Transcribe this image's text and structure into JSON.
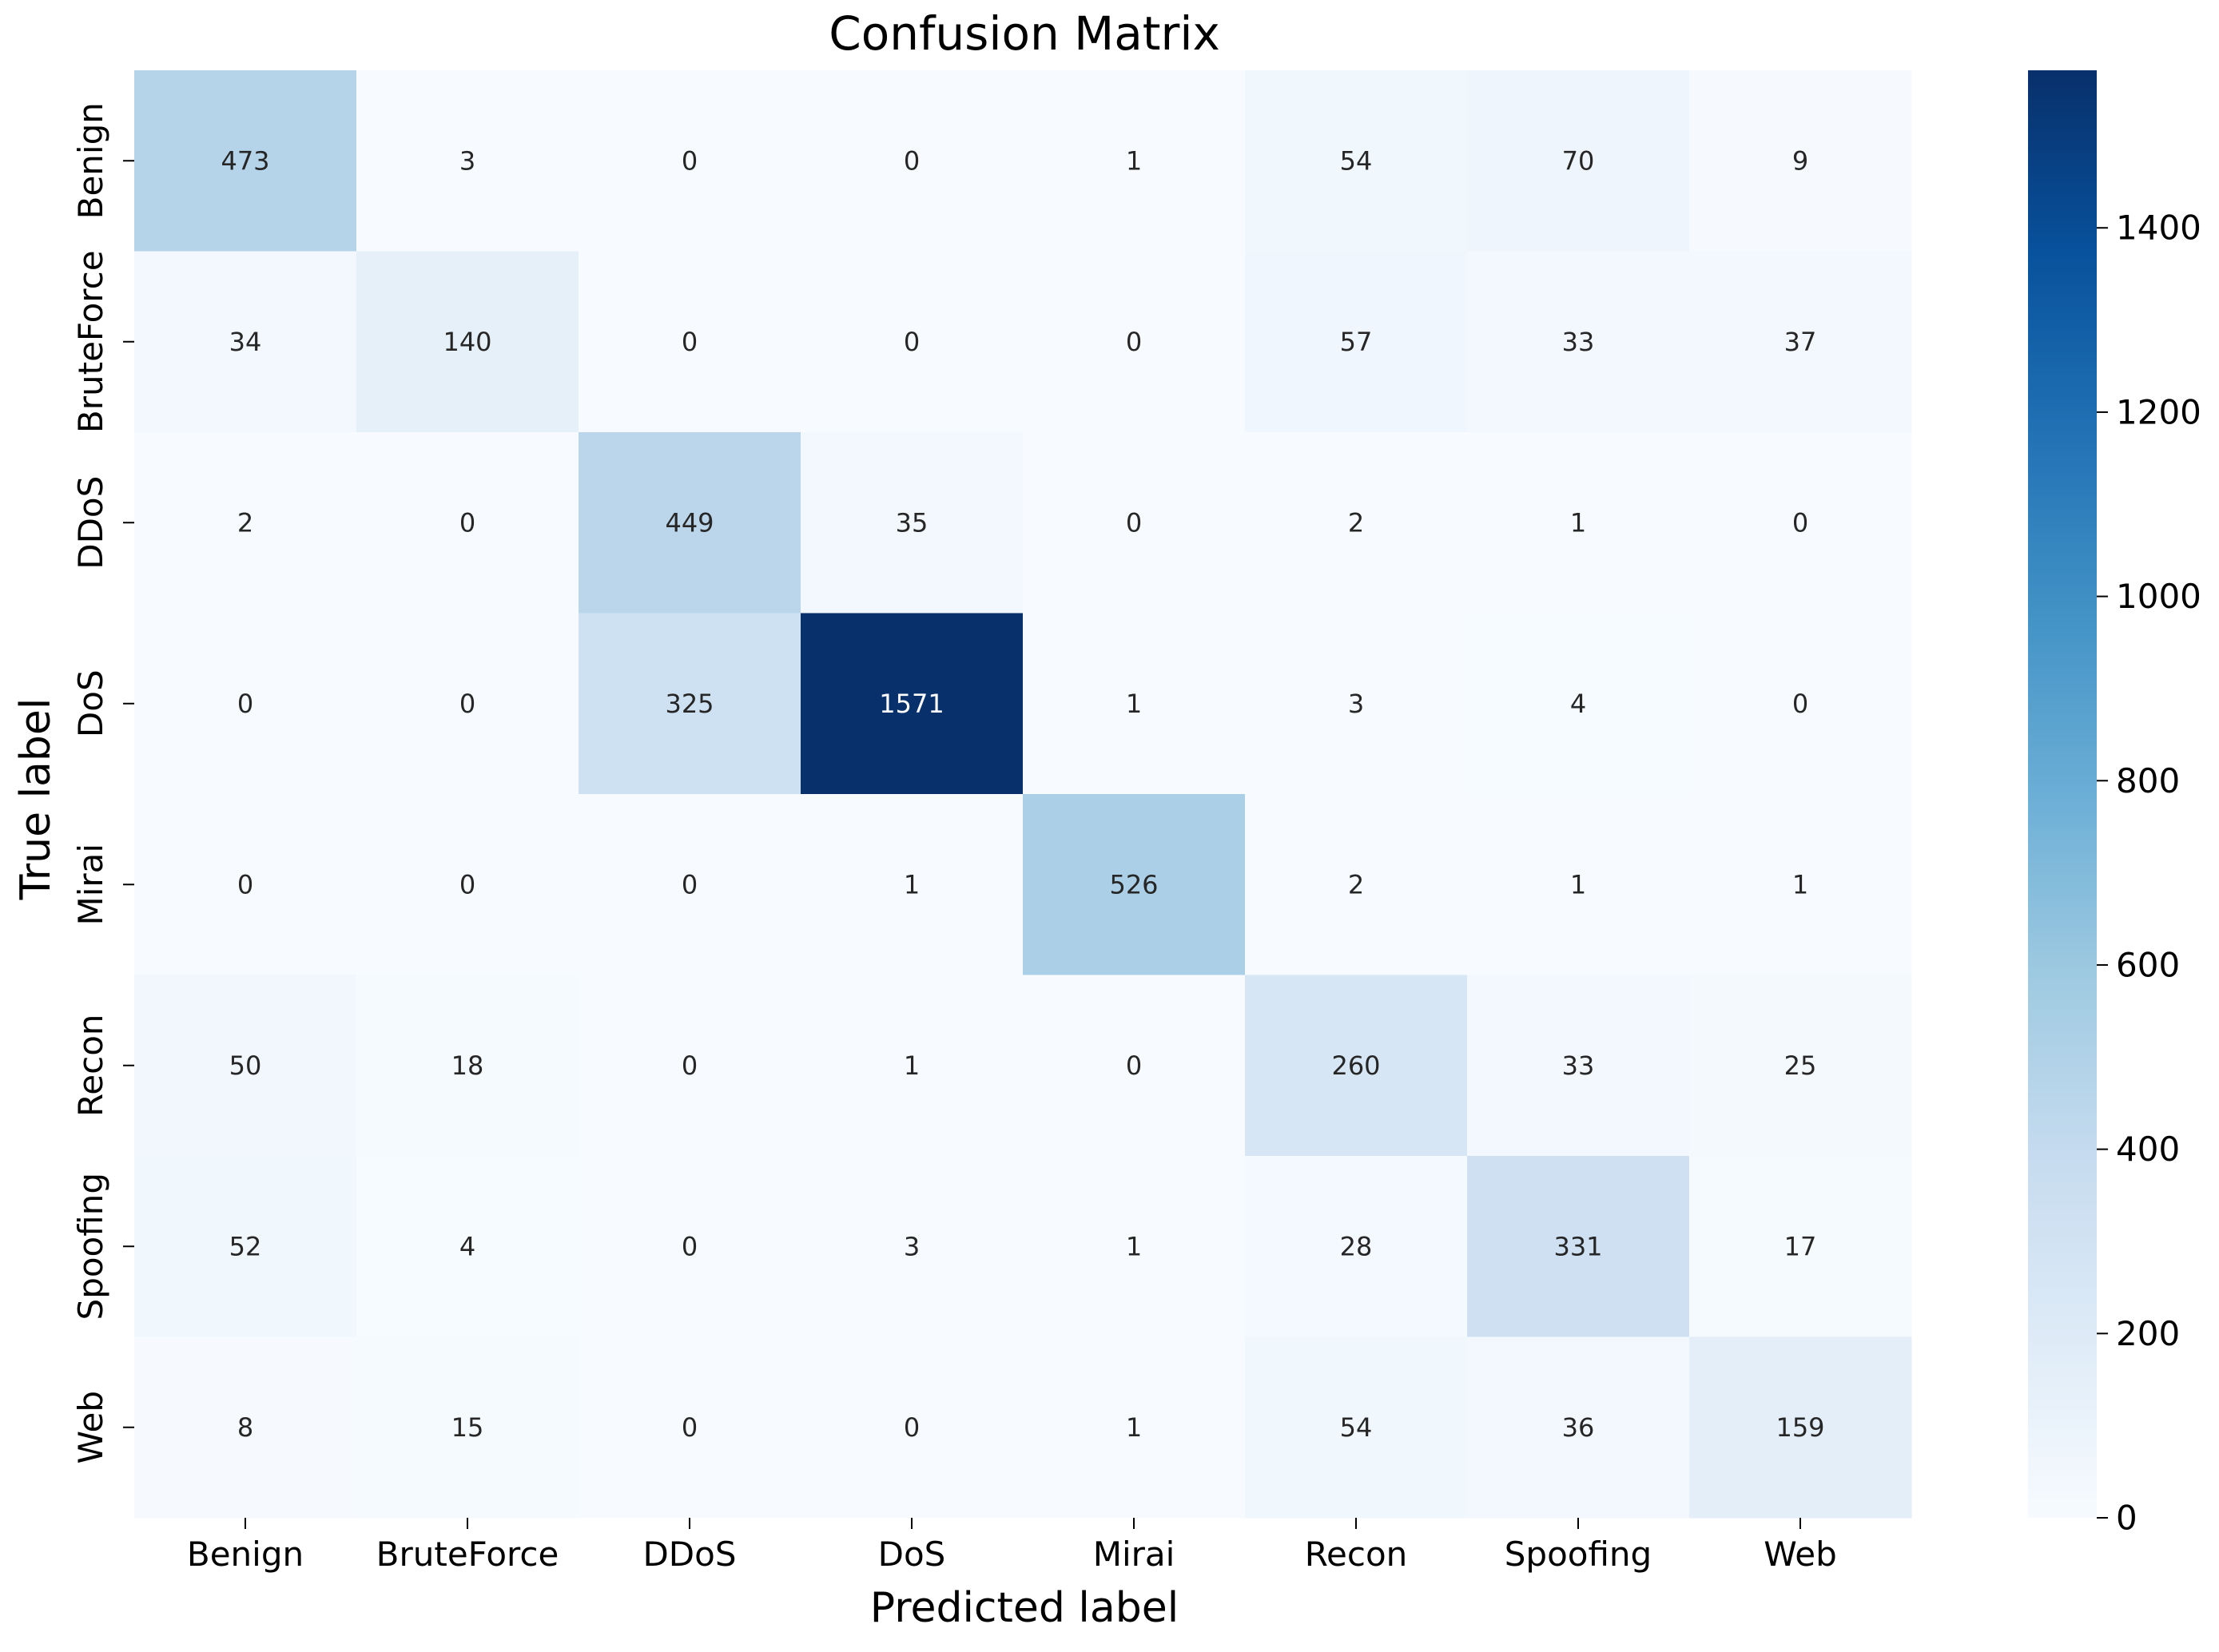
{
  "chart_data": {
    "type": "heatmap",
    "title": "Confusion Matrix",
    "xlabel": "Predicted label",
    "ylabel": "True label",
    "x_categories": [
      "Benign",
      "BruteForce",
      "DDoS",
      "DoS",
      "Mirai",
      "Recon",
      "Spoofing",
      "Web"
    ],
    "y_categories": [
      "Benign",
      "BruteForce",
      "DDoS",
      "DoS",
      "Mirai",
      "Recon",
      "Spoofing",
      "Web"
    ],
    "values": [
      [
        473,
        3,
        0,
        0,
        1,
        54,
        70,
        9
      ],
      [
        34,
        140,
        0,
        0,
        0,
        57,
        33,
        37
      ],
      [
        2,
        0,
        449,
        35,
        0,
        2,
        1,
        0
      ],
      [
        0,
        0,
        325,
        1571,
        1,
        3,
        4,
        0
      ],
      [
        0,
        0,
        0,
        1,
        526,
        2,
        1,
        1
      ],
      [
        50,
        18,
        0,
        1,
        0,
        260,
        33,
        25
      ],
      [
        52,
        4,
        0,
        3,
        1,
        28,
        331,
        17
      ],
      [
        8,
        15,
        0,
        0,
        1,
        54,
        36,
        159
      ]
    ],
    "colormap": "Blues",
    "colorbar": {
      "range": [
        0,
        1571
      ],
      "ticks": [
        0,
        200,
        400,
        600,
        800,
        1000,
        1200,
        1400
      ],
      "tick_labels": [
        "0",
        "200",
        "400",
        "600",
        "800",
        "1000",
        "1200",
        "1400"
      ]
    }
  }
}
